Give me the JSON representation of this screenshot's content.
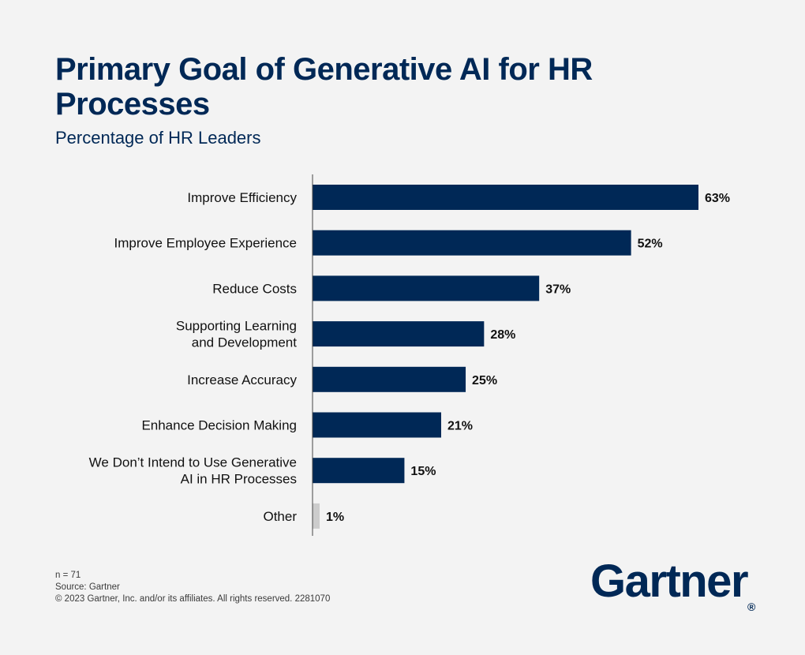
{
  "header": {
    "title": "Primary Goal of Generative AI for HR Processes",
    "subtitle": "Percentage of HR Leaders"
  },
  "chart_data": {
    "type": "bar",
    "orientation": "horizontal",
    "title": "Primary Goal of Generative AI for HR Processes",
    "subtitle": "Percentage of HR Leaders",
    "xlabel": "",
    "ylabel": "",
    "categories": [
      [
        "Improve Efficiency"
      ],
      [
        "Improve Employee Experience"
      ],
      [
        "Reduce Costs"
      ],
      [
        "Supporting Learning",
        "and Development"
      ],
      [
        "Increase Accuracy"
      ],
      [
        "Enhance Decision Making"
      ],
      [
        "We Don’t Intend to Use Generative",
        "AI in HR Processes"
      ],
      [
        "Other"
      ]
    ],
    "values": [
      63,
      52,
      37,
      28,
      25,
      21,
      15,
      1
    ],
    "value_labels": [
      "63%",
      "52%",
      "37%",
      "28%",
      "25%",
      "21%",
      "15%",
      "1%"
    ],
    "bar_colors": [
      "#002856",
      "#002856",
      "#002856",
      "#002856",
      "#002856",
      "#002856",
      "#002856",
      "#cccccc"
    ],
    "xlim": [
      0,
      63
    ],
    "grid": false
  },
  "footer": {
    "n": "n = 71",
    "source": "Source: Gartner",
    "copyright": "© 2023 Gartner, Inc. and/or its affiliates. All rights reserved. 2281070"
  },
  "brand": {
    "logo_text": "Gartner",
    "logo_mark": "®",
    "color": "#002856"
  }
}
